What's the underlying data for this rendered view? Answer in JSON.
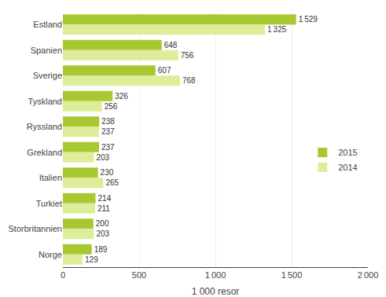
{
  "chart_data": {
    "type": "bar",
    "orientation": "horizontal",
    "categories": [
      "Estland",
      "Spanien",
      "Sverige",
      "Tyskland",
      "Ryssland",
      "Grekland",
      "Italien",
      "Turkiet",
      "Storbritannien",
      "Norge"
    ],
    "series": [
      {
        "name": "2015",
        "color": "#a8c832",
        "values": [
          1529,
          648,
          607,
          326,
          238,
          237,
          230,
          214,
          200,
          189
        ],
        "value_labels": [
          "1 529",
          "648",
          "607",
          "326",
          "238",
          "237",
          "230",
          "214",
          "200",
          "189"
        ]
      },
      {
        "name": "2014",
        "color": "#dded9a",
        "values": [
          1325,
          756,
          768,
          256,
          237,
          203,
          265,
          211,
          203,
          129
        ],
        "value_labels": [
          "1 325",
          "756",
          "768",
          "256",
          "237",
          "203",
          "265",
          "211",
          "203",
          "129"
        ]
      }
    ],
    "xlabel": "1 000 resor",
    "xlim": [
      0,
      2000
    ],
    "xticks": [
      0,
      500,
      {
        "value": 1000,
        "label": "1 000"
      },
      {
        "value": 1500,
        "label": "1 500"
      },
      {
        "value": 2000,
        "label": "2 000"
      }
    ],
    "grid": true,
    "data_labels": true,
    "legend": "right"
  }
}
